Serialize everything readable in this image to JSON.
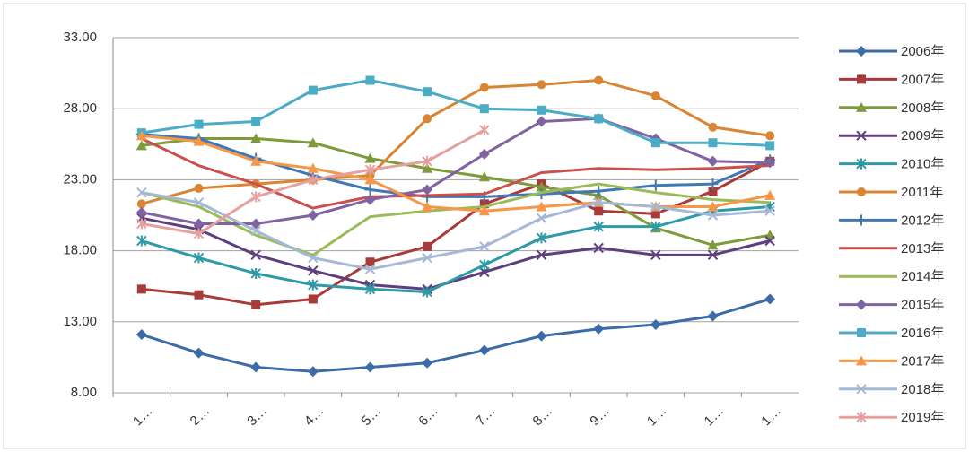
{
  "chart_data": {
    "type": "line",
    "categories": [
      "1…",
      "2…",
      "3…",
      "4…",
      "5…",
      "6…",
      "7…",
      "8…",
      "9…",
      "1…",
      "1…",
      "1…"
    ],
    "ylim": [
      8,
      33
    ],
    "yticks": [
      {
        "value": 8,
        "label": "8.00"
      },
      {
        "value": 13,
        "label": "13.00"
      },
      {
        "value": 18,
        "label": "18.00"
      },
      {
        "value": 23,
        "label": "23.00"
      },
      {
        "value": 28,
        "label": "28.00"
      },
      {
        "value": 33,
        "label": "33.00"
      }
    ],
    "grid": true,
    "legend": "right",
    "series": [
      {
        "name": "2006年",
        "color": "#3c6ca8",
        "marker": "diamond",
        "values": [
          12.1,
          10.8,
          9.8,
          9.5,
          9.8,
          10.1,
          11.0,
          12.0,
          12.5,
          12.8,
          13.4,
          14.6
        ]
      },
      {
        "name": "2007年",
        "color": "#a83a3a",
        "marker": "square",
        "values": [
          15.3,
          14.9,
          14.2,
          14.6,
          17.2,
          18.3,
          21.3,
          22.7,
          20.8,
          20.6,
          22.2,
          24.3
        ]
      },
      {
        "name": "2008年",
        "color": "#7f9a3a",
        "marker": "triangle",
        "values": [
          25.4,
          25.9,
          25.9,
          25.6,
          24.5,
          23.8,
          23.2,
          22.5,
          21.9,
          19.6,
          18.4,
          19.1
        ]
      },
      {
        "name": "2009年",
        "color": "#5e3f7e",
        "marker": "x",
        "values": [
          20.3,
          19.5,
          17.7,
          16.6,
          15.6,
          15.3,
          16.5,
          17.7,
          18.2,
          17.7,
          17.7,
          18.7
        ]
      },
      {
        "name": "2010年",
        "color": "#2e9aa6",
        "marker": "star",
        "values": [
          18.7,
          17.5,
          16.4,
          15.6,
          15.3,
          15.1,
          17.0,
          18.9,
          19.7,
          19.7,
          20.8,
          21.1
        ]
      },
      {
        "name": "2011年",
        "color": "#d98533",
        "marker": "circle",
        "values": [
          21.3,
          22.4,
          22.7,
          23.0,
          23.3,
          27.3,
          29.5,
          29.7,
          30.0,
          28.9,
          26.7,
          26.1
        ]
      },
      {
        "name": "2012年",
        "color": "#3f78b5",
        "marker": "plus",
        "values": [
          26.2,
          25.9,
          24.5,
          23.3,
          22.3,
          21.8,
          21.8,
          22.0,
          22.2,
          22.6,
          22.7,
          24.4
        ]
      },
      {
        "name": "2013年",
        "color": "#c9504d",
        "marker": "none",
        "values": [
          25.9,
          24.0,
          22.7,
          21.0,
          21.8,
          21.9,
          22.0,
          23.5,
          23.8,
          23.7,
          23.8,
          24.0
        ]
      },
      {
        "name": "2014年",
        "color": "#9bbb59",
        "marker": "none",
        "values": [
          22.1,
          21.1,
          19.1,
          17.7,
          20.4,
          20.8,
          21.1,
          22.1,
          22.7,
          22.1,
          21.6,
          21.4
        ]
      },
      {
        "name": "2015年",
        "color": "#8064a2",
        "marker": "diamond",
        "values": [
          20.7,
          19.9,
          19.9,
          20.5,
          21.6,
          22.3,
          24.8,
          27.1,
          27.3,
          25.9,
          24.3,
          24.2
        ]
      },
      {
        "name": "2016年",
        "color": "#4bacc6",
        "marker": "square",
        "values": [
          26.3,
          26.9,
          27.1,
          29.3,
          30.0,
          29.2,
          28.0,
          27.9,
          27.3,
          25.6,
          25.6,
          25.4
        ]
      },
      {
        "name": "2017年",
        "color": "#f79646",
        "marker": "triangle",
        "values": [
          26.1,
          25.7,
          24.3,
          23.8,
          23.0,
          21.1,
          20.8,
          21.1,
          21.4,
          21.1,
          21.1,
          21.9
        ]
      },
      {
        "name": "2018年",
        "color": "#a5b8d6",
        "marker": "x",
        "values": [
          22.1,
          21.4,
          19.4,
          17.5,
          16.7,
          17.5,
          18.3,
          20.3,
          21.4,
          21.1,
          20.5,
          20.8
        ]
      },
      {
        "name": "2019年",
        "color": "#e6a0a0",
        "marker": "star",
        "values": [
          19.9,
          19.2,
          21.8,
          23.0,
          23.7,
          24.3,
          26.5,
          null,
          null,
          null,
          null,
          null
        ]
      }
    ]
  }
}
